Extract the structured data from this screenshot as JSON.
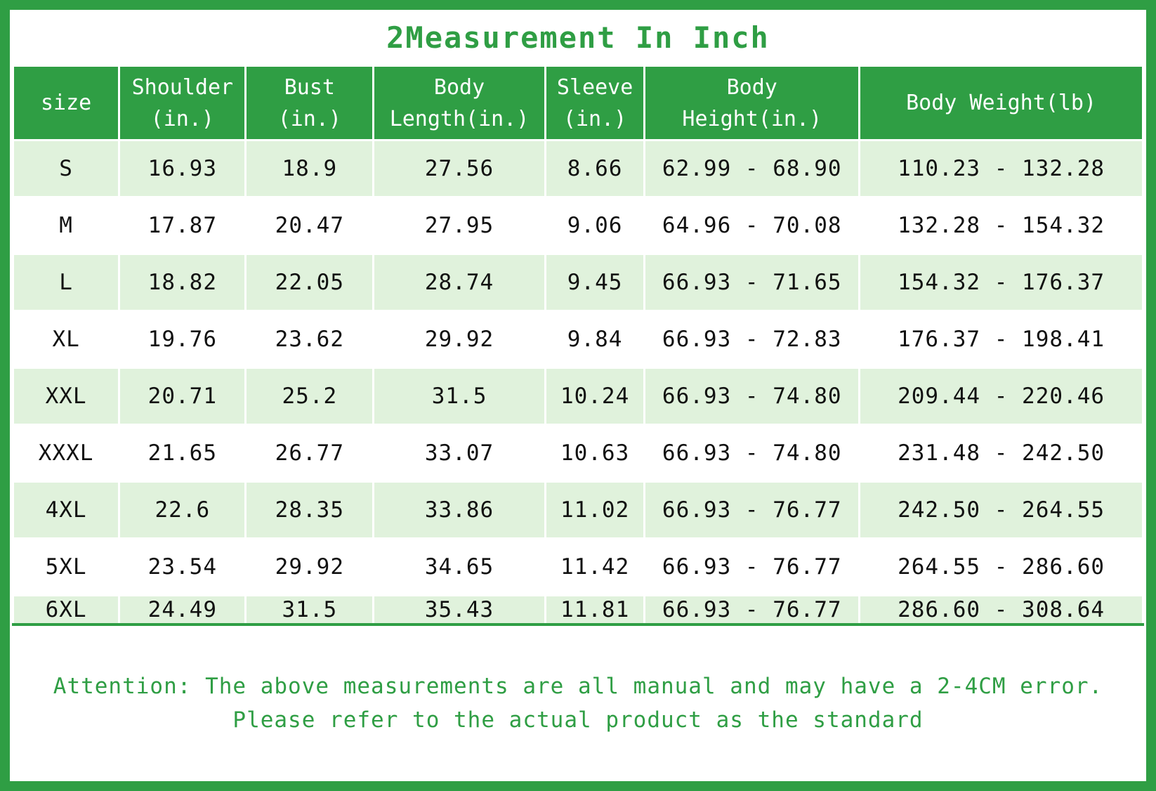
{
  "page": {
    "title": "2Measurement In Inch",
    "note_line1": "Attention: The above measurements are all manual and may have a 2-4CM error.",
    "note_line2": "Please refer to the actual product as the standard"
  },
  "colors": {
    "accent_green": "#2f9e44",
    "header_bg": "#2f9e44",
    "header_text": "#ffffff",
    "row_alt_bg": "#e0f2dc",
    "row_bg": "#ffffff",
    "cell_text": "#111111",
    "note_text": "#2f9e44"
  },
  "chart_data": {
    "type": "table",
    "title": "2Measurement In Inch",
    "columns": [
      "size",
      "Shoulder\n(in.)",
      "Bust\n(in.)",
      "Body\nLength(in.)",
      "Sleeve\n(in.)",
      "Body\nHeight(in.)",
      "Body Weight(lb)"
    ],
    "rows": [
      [
        "S",
        "16.93",
        "18.9",
        "27.56",
        "8.66",
        "62.99 - 68.90",
        "110.23 - 132.28"
      ],
      [
        "M",
        "17.87",
        "20.47",
        "27.95",
        "9.06",
        "64.96 - 70.08",
        "132.28 - 154.32"
      ],
      [
        "L",
        "18.82",
        "22.05",
        "28.74",
        "9.45",
        "66.93 - 71.65",
        "154.32 - 176.37"
      ],
      [
        "XL",
        "19.76",
        "23.62",
        "29.92",
        "9.84",
        "66.93 - 72.83",
        "176.37 - 198.41"
      ],
      [
        "XXL",
        "20.71",
        "25.2",
        "31.5",
        "10.24",
        "66.93 - 74.80",
        "209.44 - 220.46"
      ],
      [
        "XXXL",
        "21.65",
        "26.77",
        "33.07",
        "10.63",
        "66.93 - 74.80",
        "231.48 - 242.50"
      ],
      [
        "4XL",
        "22.6",
        "28.35",
        "33.86",
        "11.02",
        "66.93 - 76.77",
        "242.50 - 264.55"
      ],
      [
        "5XL",
        "23.54",
        "29.92",
        "34.65",
        "11.42",
        "66.93 - 76.77",
        "264.55 - 286.60"
      ],
      [
        "6XL",
        "24.49",
        "31.5",
        "35.43",
        "11.81",
        "66.93 - 76.77",
        "286.60 - 308.64"
      ]
    ],
    "layout": {
      "legend": false,
      "grid": "white cell separators",
      "row_striping": "light-green / white alternating"
    }
  }
}
